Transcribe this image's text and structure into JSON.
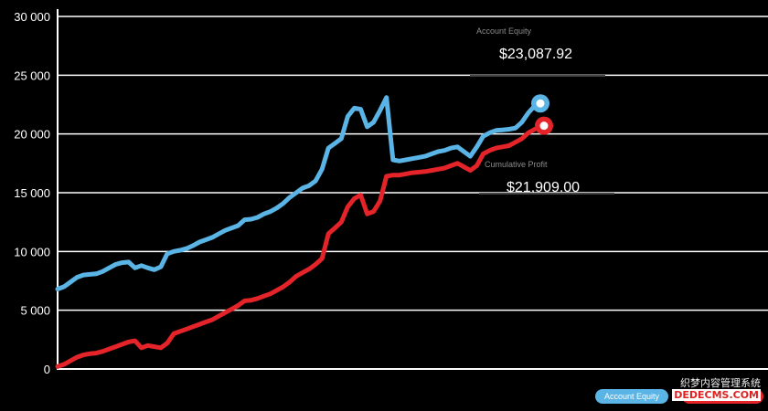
{
  "chart_data": {
    "type": "line",
    "ylim": [
      0,
      30000
    ],
    "yticks": [
      "0",
      "5 000",
      "10 000",
      "15 000",
      "20 000",
      "25 000",
      "30 000"
    ],
    "grid": true,
    "series": [
      {
        "name": "Account Equity",
        "color": "#5ab4e5",
        "values": [
          6800,
          7000,
          7400,
          7800,
          8000,
          8050,
          8100,
          8300,
          8600,
          8900,
          9050,
          9100,
          8600,
          8800,
          8600,
          8450,
          8700,
          9800,
          10000,
          10100,
          10250,
          10500,
          10800,
          11000,
          11200,
          11500,
          11800,
          12000,
          12200,
          12700,
          12750,
          12900,
          13200,
          13400,
          13700,
          14100,
          14600,
          15000,
          15400,
          15600,
          16000,
          17000,
          18800,
          19200,
          19600,
          21500,
          22200,
          22100,
          20600,
          21000,
          22000,
          23100,
          17800,
          17700,
          17800,
          17900,
          18000,
          18100,
          18300,
          18500,
          18600,
          18800,
          18900,
          18500,
          18100,
          18900,
          19800,
          20100,
          20300,
          20350,
          20400,
          20500,
          21000,
          21800,
          22400,
          22600
        ]
      },
      {
        "name": "Cumulative Profit",
        "color": "#e5242a",
        "values": [
          200,
          400,
          700,
          1000,
          1200,
          1300,
          1350,
          1500,
          1700,
          1900,
          2100,
          2300,
          2400,
          1800,
          2000,
          1900,
          1800,
          2200,
          3000,
          3200,
          3400,
          3600,
          3800,
          4000,
          4200,
          4500,
          4800,
          5100,
          5400,
          5800,
          5850,
          6000,
          6200,
          6400,
          6700,
          7000,
          7400,
          7900,
          8200,
          8500,
          8900,
          9400,
          11500,
          12000,
          12500,
          13800,
          14500,
          14800,
          13200,
          13400,
          14300,
          16400,
          16500,
          16500,
          16600,
          16700,
          16750,
          16800,
          16900,
          17000,
          17100,
          17300,
          17500,
          17200,
          16900,
          17300,
          18300,
          18600,
          18800,
          18900,
          19000,
          19300,
          19600,
          20100,
          20400,
          20700
        ]
      }
    ]
  },
  "callouts": {
    "equity_label": "Account Equity",
    "equity_value": "$23,087.92",
    "profit_label": "Cumulative Profit",
    "profit_value": "$21,909.00"
  },
  "legend": {
    "equity": "Account Equity",
    "profit": "Cumulative Profit"
  },
  "watermark": {
    "line1": "织梦内容管理系统",
    "line2": "DEDECMS.COM"
  }
}
